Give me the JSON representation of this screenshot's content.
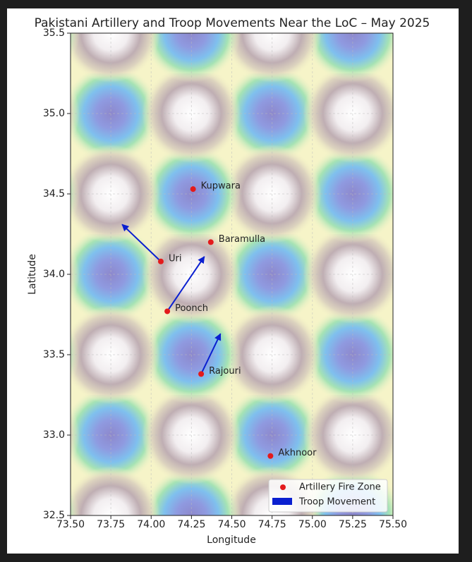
{
  "chart_data": {
    "type": "scatter",
    "title": "Pakistani Artillery and Troop Movements Near the LoC – May 2025",
    "x_label": "Longitude",
    "y_label": "Latitude",
    "xlim": [
      73.5,
      75.5
    ],
    "ylim": [
      32.5,
      35.5
    ],
    "xticks": [
      {
        "value": 73.5,
        "label": "73.50"
      },
      {
        "value": 73.75,
        "label": "73.75"
      },
      {
        "value": 74,
        "label": "74.00"
      },
      {
        "value": 74.25,
        "label": "74.25"
      },
      {
        "value": 74.5,
        "label": "74.50"
      },
      {
        "value": 74.75,
        "label": "74.75"
      },
      {
        "value": 75,
        "label": "75.00"
      },
      {
        "value": 75.25,
        "label": "75.25"
      },
      {
        "value": 75.5,
        "label": "75.50"
      }
    ],
    "yticks": [
      {
        "value": 32.5,
        "label": "32.5"
      },
      {
        "value": 33,
        "label": "33.0"
      },
      33.5,
      {
        "value": 34,
        "label": "34.0"
      },
      34.5,
      {
        "value": 35,
        "label": "35.0"
      },
      35.5
    ],
    "grid": true,
    "legend": "lower right",
    "series": [
      {
        "name": "Artillery Fire Zone",
        "color": "#e31a1c",
        "labels": [
          "Kupwara",
          "Baramulla",
          "Uri",
          "Poonch",
          "Rajouri",
          "Akhnoor"
        ],
        "x": [
          74.26,
          74.37,
          74.06,
          74.1,
          74.31,
          74.74
        ],
        "y": [
          34.53,
          34.2,
          34.08,
          33.77,
          33.38,
          32.87
        ]
      }
    ],
    "arrows": {
      "name": "Troop Movement",
      "color": "#0a1fd0",
      "x": [
        74.06,
        74.1,
        74.31
      ],
      "y": [
        34.08,
        33.77,
        33.38
      ],
      "x_end": [
        73.82,
        74.33,
        74.43
      ],
      "y_end": [
        34.31,
        34.11,
        33.63
      ]
    }
  }
}
